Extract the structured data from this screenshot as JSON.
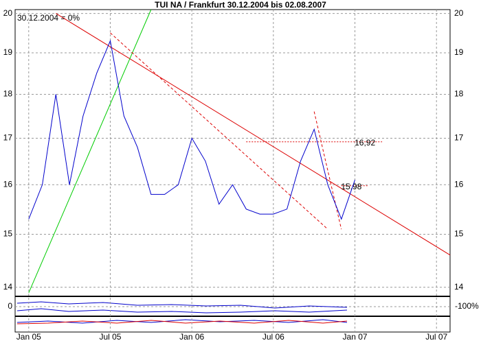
{
  "chart_data": {
    "type": "line",
    "title": "TUI NA / Frankfurt 30.12.2004 bis 02.08.2007",
    "subtitle": "30.12.2004 = 0%",
    "log_scale": true,
    "grid": true,
    "xlim": [
      "2004-12",
      "2007-08"
    ],
    "xticks": [
      {
        "value": "2005-01",
        "label": "Jan 05"
      },
      {
        "value": "2005-07",
        "label": "Jul 05"
      },
      {
        "value": "2006-01",
        "label": "Jan 06"
      },
      {
        "value": "2006-07",
        "label": "Jul 06"
      },
      {
        "value": "2007-01",
        "label": "Jan 07"
      },
      {
        "value": "2007-07",
        "label": "Jul 07"
      }
    ],
    "ylim": [
      13.86,
      20.1
    ],
    "yticks": [
      14,
      15,
      16,
      17,
      18,
      19,
      20
    ],
    "series": [
      {
        "color": "#0000cc",
        "x": [
          "2005-01",
          "2005-02",
          "2005-03",
          "2005-04",
          "2005-05",
          "2005-06",
          "2005-07",
          "2005-08",
          "2005-09",
          "2005-10",
          "2005-11",
          "2005-12",
          "2006-01",
          "2006-02",
          "2006-03",
          "2006-04",
          "2006-05",
          "2006-06",
          "2006-07",
          "2006-08",
          "2006-09",
          "2006-10",
          "2006-11",
          "2006-12",
          "2007-01"
        ],
        "values": [
          15.3,
          16.0,
          18.0,
          16.0,
          17.5,
          18.5,
          19.3,
          17.5,
          16.8,
          15.8,
          15.8,
          16.0,
          17.0,
          16.5,
          15.6,
          16.0,
          15.5,
          15.4,
          15.4,
          15.5,
          16.5,
          17.2,
          16.0,
          15.3,
          16.1
        ]
      }
    ],
    "trendlines": [
      {
        "color": "#dd0000",
        "style": "solid",
        "x": [
          "2005-03",
          "2007-08"
        ],
        "values": [
          20,
          14.6
        ]
      },
      {
        "color": "#00cc00",
        "style": "solid",
        "x": [
          "2005-01",
          "2005-10"
        ],
        "values": [
          13.9,
          20.1
        ]
      },
      {
        "color": "#dd0000",
        "style": "dashed",
        "x": [
          "2005-07",
          "2006-11"
        ],
        "values": [
          19.5,
          15.1
        ]
      },
      {
        "color": "#dd0000",
        "style": "dashed",
        "x": [
          "2006-10",
          "2006-12"
        ],
        "values": [
          17.6,
          15.1
        ]
      }
    ],
    "levels": [
      {
        "value": 16.92,
        "label": "16,92",
        "color": "#dd0000",
        "x": [
          "2006-05",
          "2007-03"
        ]
      },
      {
        "value": 15.98,
        "label": "15,98",
        "color": "#dd0000",
        "x": [
          "2006-12",
          "2007-02"
        ]
      }
    ],
    "indicator_labels": {
      "left": "0",
      "right": "-100%"
    }
  }
}
